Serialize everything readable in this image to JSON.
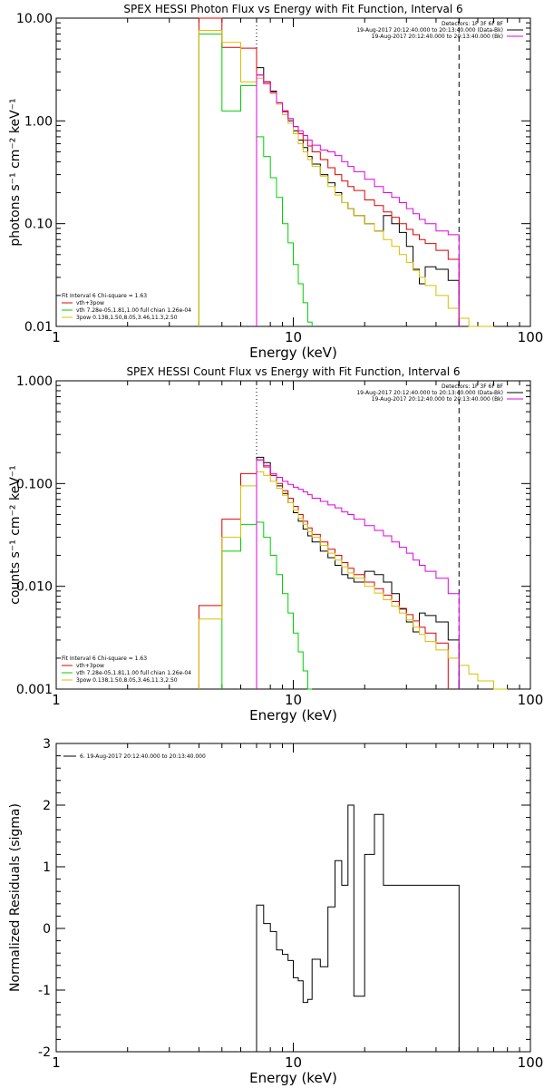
{
  "colors": {
    "red": "#e00000",
    "green": "#00d000",
    "yellow": "#d8c000",
    "magenta": "#e000e0",
    "black": "#000000",
    "blue": "#0000ff"
  },
  "chart_data": [
    {
      "type": "line",
      "title": "SPEX HESSI Photon Flux vs Energy with Fit Function, Interval 6",
      "xlabel": "Energy (keV)",
      "ylabel": "photons s⁻¹ cm⁻² keV⁻¹",
      "xscale": "log",
      "yscale": "log",
      "xlim": [
        1,
        100
      ],
      "ylim": [
        0.01,
        10
      ],
      "xticks": [
        "1",
        "10",
        "100"
      ],
      "yticks": [
        "0.01",
        "0.10",
        "1.00",
        "10.00"
      ],
      "vlines": [
        {
          "x": 7,
          "style": "dotted"
        },
        {
          "x": 50,
          "style": "dashed"
        }
      ],
      "legend_top_right": [
        "Detectors: 1F 3F 6F 8F",
        "19-Aug-2017 20:12:40.000 to 20:13:40.000 (Data-Bk)",
        "19-Aug-2017 20:12:40.000 to 20:13:40.000 (Bk)"
      ],
      "legend_bottom_left": [
        "Fit Interval 6   Chi-square = 1.63",
        "vth+3pow",
        "vth 7.28e-05,1.81,1.00  full chian 1.26e-04",
        "3pow 0.138,1.50,8.05,3.46,11.3,2.50"
      ],
      "edges": [
        4,
        5,
        6,
        7,
        7.5,
        8,
        8.5,
        9,
        9.5,
        10,
        10.5,
        11,
        11.5,
        12,
        13,
        14,
        15,
        16,
        17,
        18,
        20,
        22,
        24,
        26,
        28,
        30,
        32,
        34,
        36,
        40,
        45,
        50,
        55,
        60,
        70
      ],
      "series": [
        {
          "name": "Data-Bk",
          "color": "black",
          "values": [
            null,
            null,
            null,
            3.3,
            2.4,
            1.95,
            1.5,
            1.25,
            1.0,
            0.8,
            0.65,
            0.55,
            0.45,
            0.38,
            0.3,
            0.25,
            0.2,
            0.16,
            0.14,
            0.12,
            0.1,
            0.085,
            0.12,
            0.1,
            0.082,
            0.06,
            0.036,
            0.026,
            0.038,
            0.036,
            0.028,
            null,
            null,
            null
          ]
        },
        {
          "name": "vth+3pow",
          "color": "red",
          "values": [
            10,
            5.2,
            5.1,
            2.8,
            2.4,
            1.9,
            1.5,
            1.25,
            1.05,
            0.88,
            0.75,
            0.65,
            0.57,
            0.5,
            0.42,
            0.35,
            0.3,
            0.26,
            0.23,
            0.21,
            0.17,
            0.15,
            0.13,
            0.115,
            0.1,
            0.088,
            0.078,
            0.07,
            0.064,
            0.055,
            0.045,
            null,
            null,
            null
          ]
        },
        {
          "name": "vth",
          "color": "green",
          "values": [
            7,
            1.25,
            2.2,
            0.7,
            0.45,
            0.28,
            0.18,
            0.1,
            0.065,
            0.04,
            0.026,
            0.017,
            0.011,
            null,
            null,
            null,
            null,
            null,
            null,
            null,
            null,
            null,
            null,
            null,
            null,
            null,
            null,
            null,
            null,
            null,
            null,
            null,
            null,
            null
          ]
        },
        {
          "name": "3pow",
          "color": "yellow",
          "values": [
            7.6,
            5.8,
            2.4,
            2.6,
            2.3,
            1.85,
            1.45,
            1.15,
            0.95,
            0.75,
            0.6,
            0.5,
            0.42,
            0.36,
            0.29,
            0.23,
            0.19,
            0.16,
            0.14,
            0.12,
            0.1,
            0.085,
            0.07,
            0.06,
            0.05,
            0.042,
            0.035,
            0.03,
            0.025,
            0.02,
            0.015,
            0.012,
            0.01,
            0.01
          ]
        },
        {
          "name": "Bk",
          "color": "magenta",
          "values": [
            null,
            null,
            null,
            2.8,
            2.3,
            1.9,
            1.5,
            1.22,
            1.05,
            0.88,
            0.8,
            0.72,
            0.65,
            0.58,
            0.52,
            0.5,
            0.46,
            0.4,
            0.36,
            0.32,
            0.27,
            0.23,
            0.2,
            0.18,
            0.16,
            0.14,
            0.125,
            0.11,
            0.1,
            0.085,
            0.078,
            null,
            null,
            null
          ]
        }
      ]
    },
    {
      "type": "line",
      "title": "SPEX HESSI Count Flux vs Energy with Fit Function, Interval 6",
      "xlabel": "Energy (keV)",
      "ylabel": "counts s⁻¹ cm⁻² keV⁻¹",
      "xscale": "log",
      "yscale": "log",
      "xlim": [
        1,
        100
      ],
      "ylim": [
        0.001,
        1
      ],
      "xticks": [
        "1",
        "10",
        "100"
      ],
      "yticks": [
        "0.001",
        "0.010",
        "0.100",
        "1.000"
      ],
      "vlines": [
        {
          "x": 7,
          "style": "dotted"
        },
        {
          "x": 50,
          "style": "dashed"
        }
      ],
      "legend_top_right": [
        "Detectors: 1F 3F 6F 8F",
        "19-Aug-2017 20:12:40.000 to 20:13:40.000 (Data-Bk)",
        "19-Aug-2017 20:12:40.000 to 20:13:40.000 (Bk)"
      ],
      "legend_bottom_left": [
        "Fit Interval 6   Chi-square = 1.63",
        "vth+3pow",
        "vth 7.28e-05,1.81,1.00  full chian 1.26e-04",
        "3pow 0.138,1.50,8.05,3.46,11.3,2.50"
      ],
      "edges": [
        4,
        5,
        6,
        7,
        7.5,
        8,
        8.5,
        9,
        9.5,
        10,
        10.5,
        11,
        11.5,
        12,
        13,
        14,
        15,
        16,
        17,
        18,
        20,
        22,
        24,
        26,
        28,
        30,
        32,
        34,
        36,
        40,
        45,
        50,
        55,
        60,
        70,
        80
      ],
      "series": [
        {
          "name": "Data-Bk",
          "color": "black",
          "values": [
            null,
            null,
            null,
            0.18,
            0.16,
            0.12,
            0.095,
            0.08,
            0.065,
            0.052,
            0.043,
            0.036,
            0.031,
            0.027,
            0.022,
            0.019,
            0.016,
            0.013,
            0.012,
            0.011,
            0.014,
            0.013,
            0.011,
            0.0085,
            0.006,
            0.0045,
            0.0036,
            0.0055,
            0.0052,
            0.0045,
            0.003,
            null,
            null,
            null,
            null
          ]
        },
        {
          "name": "vth+3pow",
          "color": "red",
          "values": [
            0.0065,
            0.045,
            0.125,
            0.17,
            0.145,
            0.12,
            0.1,
            0.085,
            0.072,
            0.06,
            0.05,
            0.043,
            0.037,
            0.032,
            0.027,
            0.023,
            0.02,
            0.017,
            0.015,
            0.013,
            0.011,
            0.0095,
            0.0082,
            0.0071,
            0.0061,
            0.0053,
            0.0046,
            0.004,
            0.0035,
            0.0028,
            null,
            null,
            null,
            null,
            null
          ]
        },
        {
          "name": "vth",
          "color": "green",
          "values": [
            null,
            0.022,
            0.04,
            0.042,
            0.03,
            0.02,
            0.013,
            0.0085,
            0.0055,
            0.0035,
            0.0023,
            0.0015,
            0.001,
            null,
            null,
            null,
            null,
            null,
            null,
            null,
            null,
            null,
            null,
            null,
            null,
            null,
            null,
            null,
            null,
            null,
            null,
            null,
            null,
            null,
            null
          ]
        },
        {
          "name": "3pow",
          "color": "yellow",
          "values": [
            0.0048,
            0.03,
            0.095,
            0.13,
            0.12,
            0.105,
            0.09,
            0.077,
            0.065,
            0.055,
            0.046,
            0.04,
            0.034,
            0.03,
            0.025,
            0.021,
            0.018,
            0.0155,
            0.0135,
            0.012,
            0.01,
            0.0086,
            0.0074,
            0.0064,
            0.0055,
            0.0047,
            0.004,
            0.0034,
            0.0029,
            0.0024,
            0.002,
            0.0017,
            0.0014,
            0.0012,
            0.001
          ]
        },
        {
          "name": "Bk",
          "color": "magenta",
          "values": [
            null,
            null,
            null,
            0.17,
            0.15,
            0.125,
            0.115,
            0.105,
            0.098,
            0.092,
            0.088,
            0.083,
            0.078,
            0.072,
            0.067,
            0.062,
            0.058,
            0.053,
            0.05,
            0.045,
            0.039,
            0.035,
            0.031,
            0.027,
            0.024,
            0.021,
            0.018,
            0.016,
            0.014,
            0.012,
            0.0085,
            null,
            null,
            null,
            null
          ]
        }
      ]
    },
    {
      "type": "line",
      "title": "",
      "xlabel": "Energy (keV)",
      "ylabel": "Normalized Residuals (sigma)",
      "xscale": "log",
      "yscale": "linear",
      "xlim": [
        1,
        100
      ],
      "ylim": [
        -2,
        3
      ],
      "xticks": [
        "1",
        "10",
        "100"
      ],
      "yticks": [
        "-2",
        "-1",
        "0",
        "1",
        "2",
        "3"
      ],
      "legend_top_left": [
        "6. 19-Aug-2017 20:12:40.000 to 20:13:40.000"
      ],
      "edges": [
        7,
        7.5,
        8,
        8.5,
        9,
        9.5,
        10,
        10.5,
        11,
        11.5,
        12,
        13,
        14,
        15,
        16,
        17,
        18,
        20,
        22,
        24,
        26,
        28,
        30,
        32,
        34,
        36,
        40,
        45,
        50
      ],
      "series": [
        {
          "name": "",
          "color": "black",
          "values": [
            0.38,
            0.08,
            -0.05,
            -0.35,
            -0.42,
            -0.52,
            -0.8,
            -0.85,
            -1.2,
            -1.15,
            -0.5,
            -0.62,
            0.35,
            1.1,
            0.7,
            2.0,
            -1.1,
            1.2,
            1.85,
            0.7,
            0.7,
            0.7,
            0.7,
            0.7,
            0.7,
            0.7,
            0.7,
            0.7
          ]
        }
      ]
    }
  ]
}
